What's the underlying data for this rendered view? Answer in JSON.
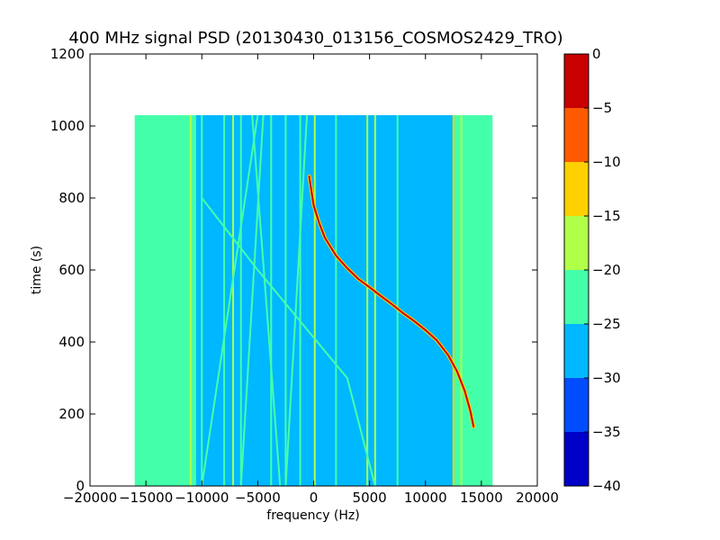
{
  "chart_data": {
    "type": "heatmap",
    "title": "400 MHz signal PSD (20130430_013156_COSMOS2429_TRO)",
    "xlabel": "frequency (Hz)",
    "ylabel": "time (s)",
    "xlim": [
      -20000,
      20000
    ],
    "ylim": [
      0,
      1200
    ],
    "xticks": [
      -20000,
      -15000,
      -10000,
      -5000,
      0,
      5000,
      10000,
      15000,
      20000
    ],
    "xtick_labels": [
      "−20000",
      "−15000",
      "−10000",
      "−5000",
      "0",
      "5000",
      "10000",
      "15000",
      "20000"
    ],
    "yticks": [
      0,
      200,
      400,
      600,
      800,
      1000,
      1200
    ],
    "ytick_labels": [
      "0",
      "200",
      "400",
      "600",
      "800",
      "1000",
      "1200"
    ],
    "data_extent": {
      "x": [
        -16000,
        16000
      ],
      "y": [
        0,
        1030
      ]
    },
    "colorbar": {
      "vmin": -40,
      "vmax": 0,
      "levels": [
        -40,
        -35,
        -30,
        -25,
        -20,
        -15,
        -10,
        -5,
        0
      ],
      "tick_labels": [
        "−40",
        "−35",
        "−30",
        "−25",
        "−20",
        "−15",
        "−10",
        "−5",
        "0"
      ],
      "colors": [
        "#0000c8",
        "#004cff",
        "#00b8ff",
        "#44ffaa",
        "#b0ff48",
        "#ffd000",
        "#ff5a00",
        "#c80000"
      ]
    },
    "background_level_db": -22,
    "noise_band": {
      "x": [
        -10500,
        12500
      ],
      "level_db": -27
    },
    "vertical_lines": [
      {
        "x": -11000,
        "level_db": -17
      },
      {
        "x": -10000,
        "level_db": -22
      },
      {
        "x": -8000,
        "level_db": -22
      },
      {
        "x": -7200,
        "level_db": -17
      },
      {
        "x": -6500,
        "level_db": -22
      },
      {
        "x": -3800,
        "level_db": -22
      },
      {
        "x": -2500,
        "level_db": -22
      },
      {
        "x": -1200,
        "level_db": -22
      },
      {
        "x": 100,
        "level_db": -17
      },
      {
        "x": 2000,
        "level_db": -22
      },
      {
        "x": 4800,
        "level_db": -17
      },
      {
        "x": 5500,
        "level_db": -17
      },
      {
        "x": 7500,
        "level_db": -22
      },
      {
        "x": 12500,
        "level_db": -13
      },
      {
        "x": 13200,
        "level_db": -17
      }
    ],
    "diagonal_traces": [
      {
        "points": [
          [
            -10000,
            0
          ],
          [
            -5000,
            1030
          ]
        ],
        "level_db": -22
      },
      {
        "points": [
          [
            -6500,
            0
          ],
          [
            -4500,
            1030
          ]
        ],
        "level_db": -22
      },
      {
        "points": [
          [
            -3000,
            0
          ],
          [
            -5500,
            1030
          ]
        ],
        "level_db": -22
      },
      {
        "points": [
          [
            -2500,
            0
          ],
          [
            -600,
            1030
          ]
        ],
        "level_db": -22
      },
      {
        "points": [
          [
            -10000,
            800
          ],
          [
            -5000,
            600
          ],
          [
            3000,
            300
          ],
          [
            5500,
            0
          ]
        ],
        "level_db": -22
      }
    ],
    "doppler_track": {
      "level_db": -2,
      "points": [
        [
          -400,
          860
        ],
        [
          0,
          780
        ],
        [
          500,
          730
        ],
        [
          1000,
          690
        ],
        [
          2000,
          640
        ],
        [
          3000,
          605
        ],
        [
          4000,
          575
        ],
        [
          5000,
          552
        ],
        [
          6000,
          528
        ],
        [
          7000,
          505
        ],
        [
          8000,
          480
        ],
        [
          9000,
          458
        ],
        [
          10000,
          433
        ],
        [
          11000,
          405
        ],
        [
          12000,
          365
        ],
        [
          12800,
          320
        ],
        [
          13500,
          265
        ],
        [
          14000,
          210
        ],
        [
          14300,
          165
        ]
      ]
    }
  }
}
